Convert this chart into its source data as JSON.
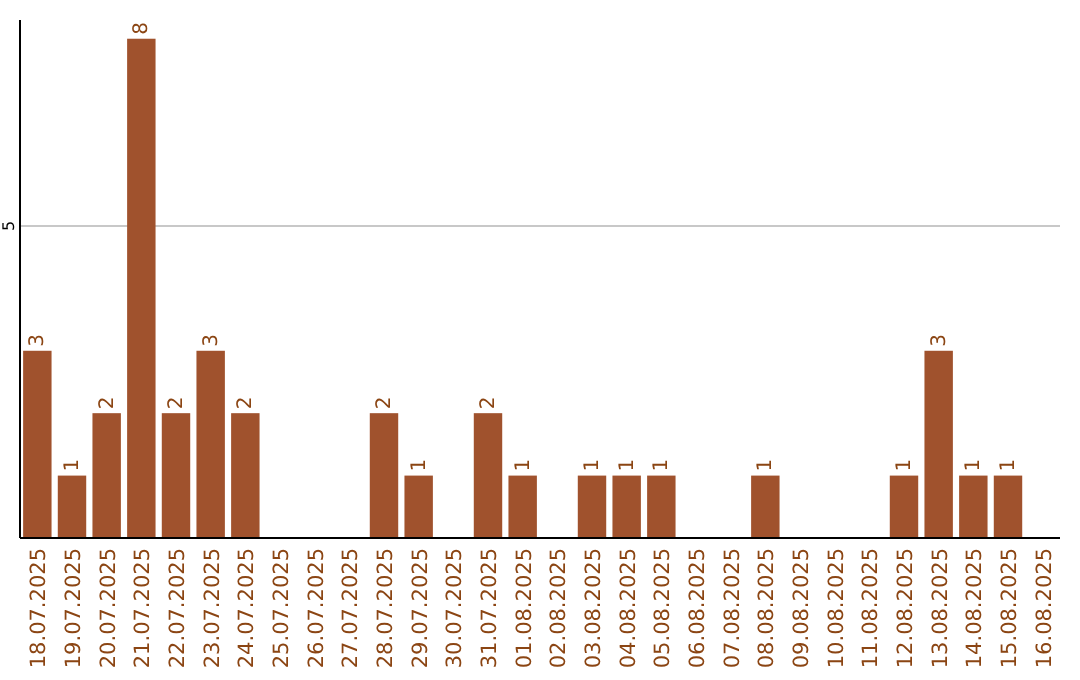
{
  "chart_data": {
    "type": "bar",
    "categories": [
      "18.07.2025",
      "19.07.2025",
      "20.07.2025",
      "21.07.2025",
      "22.07.2025",
      "23.07.2025",
      "24.07.2025",
      "25.07.2025",
      "26.07.2025",
      "27.07.2025",
      "28.07.2025",
      "29.07.2025",
      "30.07.2025",
      "31.07.2025",
      "01.08.2025",
      "02.08.2025",
      "03.08.2025",
      "04.08.2025",
      "05.08.2025",
      "06.08.2025",
      "07.08.2025",
      "08.08.2025",
      "09.08.2025",
      "10.08.2025",
      "11.08.2025",
      "12.08.2025",
      "13.08.2025",
      "14.08.2025",
      "15.08.2025",
      "16.08.2025"
    ],
    "values": [
      3,
      1,
      2,
      8,
      2,
      3,
      2,
      null,
      null,
      null,
      2,
      1,
      null,
      2,
      1,
      null,
      1,
      1,
      1,
      null,
      null,
      1,
      null,
      null,
      null,
      1,
      3,
      1,
      1,
      null
    ],
    "color": "#a0522d",
    "ylim": [
      0,
      8.3
    ],
    "yticks": [
      5
    ],
    "grid": "y",
    "data_labels": true
  }
}
